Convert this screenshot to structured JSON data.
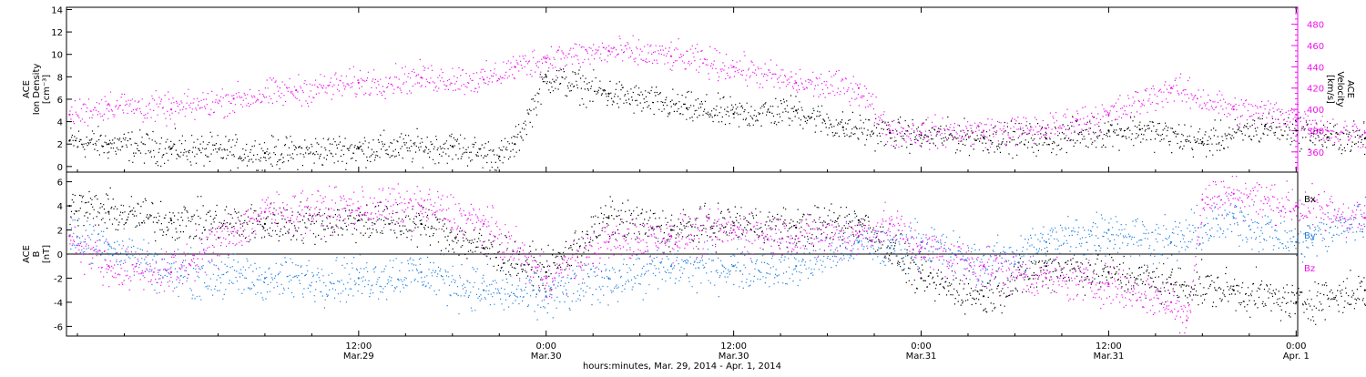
{
  "colors": {
    "density": "#000000",
    "velocity": "#ee11ee",
    "bx": "#000000",
    "by": "#1f7fdd",
    "bz": "#ee11ee"
  },
  "xaxis": {
    "title": "hours:minutes, Mar. 29, 2014 - Apr. 1, 2014",
    "range_hours": [
      -6.7,
      72.1
    ],
    "ticks": [
      {
        "time": "12:00",
        "date": "Mar.29",
        "hours": 12
      },
      {
        "time": "0:00",
        "date": "Mar.30",
        "hours": 24
      },
      {
        "time": "12:00",
        "date": "Mar.30",
        "hours": 36
      },
      {
        "time": "0:00",
        "date": "Mar.31",
        "hours": 48
      },
      {
        "time": "12:00",
        "date": "Mar.31",
        "hours": 60
      },
      {
        "time": "0:00",
        "date": "Apr. 1",
        "hours": 72
      }
    ]
  },
  "panel1": {
    "left_label": [
      "ACE",
      "Ion Density",
      "[cm⁻³]"
    ],
    "right_label": [
      "ACE",
      "Velocity",
      "[km/s]"
    ],
    "left_range": [
      -0.5,
      14.2
    ],
    "left_ticks": [
      "0",
      "2",
      "4",
      "6",
      "8",
      "10",
      "12",
      "14"
    ],
    "right_range": [
      341,
      496
    ],
    "right_ticks": [
      "360",
      "380",
      "400",
      "420",
      "440",
      "460",
      "480"
    ]
  },
  "panel2": {
    "left_label": [
      "ACE",
      "B",
      "[nT]"
    ],
    "range": [
      -6.8,
      6.8
    ],
    "ticks": [
      "-6",
      "-4",
      "-2",
      "0",
      "2",
      "4",
      "6"
    ],
    "legend": [
      "Bx",
      "By",
      "Bz"
    ]
  },
  "chart_data": [
    {
      "type": "scatter",
      "title": "",
      "xlabel": "hours:minutes, Mar. 29, 2014 - Apr. 1, 2014",
      "ylabel": "ACE Ion Density [cm⁻³]",
      "y2label": "ACE Velocity [km/s]",
      "ylim": [
        -0.5,
        14.2
      ],
      "y2lim": [
        341,
        496
      ],
      "x_units": "hours from 2014-03-29 00:00",
      "series": [
        {
          "name": "Ion Density",
          "axis": "left",
          "x": [
            -6.5,
            -4,
            0,
            6,
            12,
            18,
            21,
            22,
            24,
            28,
            33,
            36,
            40,
            43,
            46,
            48,
            52,
            56,
            60,
            62,
            66,
            70,
            72,
            74,
            76.4
          ],
          "values": [
            2.3,
            2.0,
            1.6,
            1.2,
            1.6,
            1.8,
            0.9,
            2.0,
            8.0,
            6.5,
            5.2,
            4.7,
            5.0,
            3.5,
            3.0,
            2.8,
            2.6,
            2.5,
            3.2,
            3.3,
            2.2,
            3.6,
            3.2,
            2.6,
            2.5
          ]
        },
        {
          "name": "Velocity",
          "axis": "right",
          "x": [
            -6.5,
            -4,
            0,
            4,
            8,
            12,
            16,
            20,
            22,
            24,
            28,
            32,
            36,
            40,
            44,
            46,
            48,
            52,
            56,
            58,
            60,
            64,
            68,
            72,
            74,
            76.4
          ],
          "values": [
            395,
            405,
            400,
            410,
            418,
            425,
            430,
            428,
            440,
            448,
            455,
            450,
            440,
            425,
            420,
            380,
            378,
            380,
            382,
            390,
            395,
            420,
            400,
            395,
            380,
            378
          ]
        }
      ]
    },
    {
      "type": "scatter",
      "title": "",
      "xlabel": "hours:minutes, Mar. 29, 2014 - Apr. 1, 2014",
      "ylabel": "ACE B [nT]",
      "ylim": [
        -6.8,
        6.8
      ],
      "x_units": "hours from 2014-03-29 00:00",
      "series": [
        {
          "name": "Bx",
          "x": [
            -6.5,
            -4,
            0,
            6,
            12,
            16,
            20,
            24,
            28,
            32,
            36,
            40,
            44,
            46,
            48,
            52,
            56,
            60,
            64,
            68,
            72,
            76.4
          ],
          "values": [
            4.0,
            3.5,
            2.8,
            2.5,
            2.8,
            2.5,
            0.5,
            -1.5,
            3.0,
            2.0,
            2.6,
            2.2,
            2.8,
            0.5,
            -2.0,
            -3.5,
            -1.0,
            -1.5,
            -2.5,
            -3.0,
            -4.0,
            -3.0
          ]
        },
        {
          "name": "By",
          "x": [
            -6.5,
            -4,
            0,
            6,
            12,
            16,
            20,
            24,
            28,
            32,
            36,
            40,
            44,
            46,
            48,
            52,
            56,
            60,
            64,
            68,
            72,
            76.4
          ],
          "values": [
            1.5,
            0.8,
            -1.5,
            -2.0,
            -2.0,
            -1.5,
            -3.0,
            -3.5,
            -2.0,
            -1.0,
            -1.0,
            -1.0,
            1.0,
            0.5,
            1.0,
            -1.0,
            1.0,
            2.0,
            1.0,
            3.0,
            1.0,
            3.0
          ]
        },
        {
          "name": "Bz",
          "x": [
            -6.5,
            -4,
            0,
            6,
            12,
            16,
            20,
            24,
            28,
            32,
            36,
            40,
            44,
            46,
            48,
            52,
            56,
            60,
            64,
            65,
            66,
            68,
            72,
            76.4
          ],
          "values": [
            1.5,
            -1.0,
            -1.5,
            3.5,
            3.8,
            4.0,
            2.5,
            -2.0,
            1.0,
            1.5,
            2.0,
            1.5,
            1.5,
            2.5,
            0.5,
            -1.0,
            -2.0,
            -2.5,
            -4.0,
            -5.5,
            4.5,
            5.0,
            4.0,
            3.0
          ]
        }
      ]
    }
  ]
}
